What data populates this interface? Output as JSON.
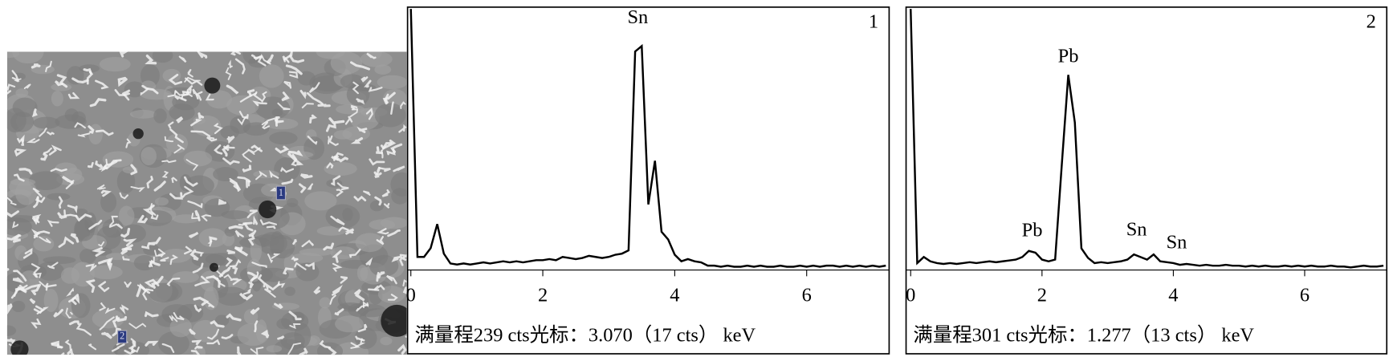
{
  "image_labels": [
    "1",
    "2"
  ],
  "chart_data": [
    {
      "type": "line",
      "panel_label": "1",
      "caption": "满量程239 cts光标：3.070（17 cts） keV",
      "color": "#000000",
      "xlim": [
        -0.05,
        7.25
      ],
      "ylim": [
        0,
        239
      ],
      "xticks": [
        0,
        2,
        4,
        6
      ],
      "annotations": [
        {
          "text": "Sn",
          "x": 3.44,
          "y": 230
        }
      ],
      "x": [
        0,
        0.1,
        0.2,
        0.3,
        0.4,
        0.5,
        0.6,
        0.7,
        0.8,
        0.9,
        1,
        1.1,
        1.2,
        1.3,
        1.4,
        1.5,
        1.6,
        1.7,
        1.8,
        1.9,
        2,
        2.1,
        2.2,
        2.3,
        2.4,
        2.5,
        2.6,
        2.7,
        2.8,
        2.9,
        3,
        3.1,
        3.2,
        3.3,
        3.4,
        3.5,
        3.6,
        3.7,
        3.8,
        3.9,
        4,
        4.1,
        4.2,
        4.3,
        4.4,
        4.5,
        4.6,
        4.7,
        4.8,
        4.9,
        5,
        5.1,
        5.2,
        5.3,
        5.4,
        5.5,
        5.6,
        5.7,
        5.8,
        5.9,
        6,
        6.1,
        6.2,
        6.3,
        6.4,
        6.5,
        6.6,
        6.7,
        6.8,
        6.9,
        7,
        7.1,
        7.2
      ],
      "values": [
        239,
        12,
        12,
        20,
        42,
        15,
        6,
        5,
        6,
        5,
        6,
        7,
        6,
        7,
        8,
        7,
        8,
        7,
        8,
        9,
        9,
        10,
        9,
        12,
        11,
        10,
        11,
        13,
        12,
        11,
        12,
        14,
        15,
        18,
        200,
        205,
        60,
        100,
        35,
        28,
        14,
        8,
        10,
        8,
        7,
        4,
        4,
        3,
        4,
        3,
        3,
        4,
        3,
        4,
        3,
        3,
        4,
        3,
        3,
        4,
        3,
        4,
        3,
        4,
        4,
        3,
        4,
        3,
        4,
        3,
        4,
        3,
        4
      ]
    },
    {
      "type": "line",
      "panel_label": "2",
      "caption": "满量程301 cts光标：1.277（13 cts） keV",
      "color": "#000000",
      "xlim": [
        -0.07,
        7.25
      ],
      "ylim": [
        0,
        301
      ],
      "xticks": [
        0,
        2,
        4,
        6
      ],
      "annotations": [
        {
          "text": "Pb",
          "x": 2.4,
          "y": 245
        },
        {
          "text": "Pb",
          "x": 1.85,
          "y": 44
        },
        {
          "text": "Sn",
          "x": 3.44,
          "y": 45
        },
        {
          "text": "Sn",
          "x": 4.05,
          "y": 30
        }
      ],
      "x": [
        0,
        0.1,
        0.2,
        0.3,
        0.4,
        0.5,
        0.6,
        0.7,
        0.8,
        0.9,
        1,
        1.1,
        1.2,
        1.3,
        1.4,
        1.5,
        1.6,
        1.7,
        1.8,
        1.9,
        2,
        2.1,
        2.2,
        2.3,
        2.4,
        2.5,
        2.6,
        2.7,
        2.8,
        2.9,
        3,
        3.1,
        3.2,
        3.3,
        3.4,
        3.5,
        3.6,
        3.7,
        3.8,
        3.9,
        4,
        4.1,
        4.2,
        4.3,
        4.4,
        4.5,
        4.6,
        4.7,
        4.8,
        4.9,
        5,
        5.1,
        5.2,
        5.3,
        5.4,
        5.5,
        5.6,
        5.7,
        5.8,
        5.9,
        6,
        6.1,
        6.2,
        6.3,
        6.4,
        6.5,
        6.6,
        6.7,
        6.8,
        6.9,
        7,
        7.1,
        7.2
      ],
      "values": [
        301,
        8,
        15,
        10,
        8,
        7,
        8,
        7,
        8,
        9,
        8,
        9,
        10,
        9,
        10,
        11,
        12,
        15,
        22,
        20,
        12,
        10,
        12,
        120,
        225,
        170,
        25,
        14,
        8,
        9,
        8,
        9,
        10,
        12,
        18,
        15,
        12,
        18,
        10,
        9,
        8,
        6,
        7,
        6,
        5,
        6,
        5,
        5,
        6,
        5,
        5,
        4,
        5,
        4,
        5,
        4,
        4,
        5,
        4,
        5,
        4,
        5,
        4,
        4,
        5,
        4,
        4,
        3,
        4,
        5,
        4,
        4,
        5
      ]
    }
  ]
}
